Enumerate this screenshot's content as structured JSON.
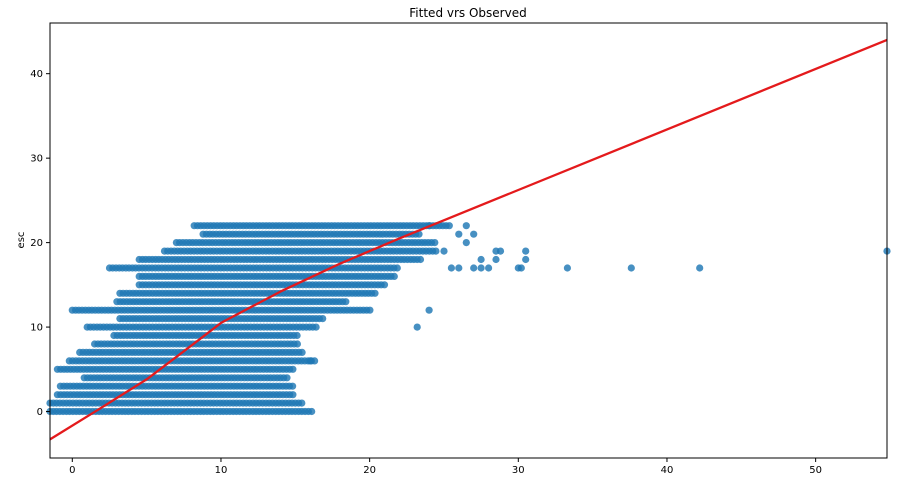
{
  "chart_data": {
    "type": "scatter",
    "title": "Fitted vrs Observed",
    "xlabel": "",
    "ylabel": "esc",
    "xlim": [
      -1.5,
      54.8
    ],
    "ylim": [
      -5.5,
      46
    ],
    "xticks": [
      0,
      10,
      20,
      30,
      40,
      50
    ],
    "yticks": [
      0,
      10,
      20,
      30,
      40
    ],
    "xtick_labels": [
      "0",
      "10",
      "20",
      "30",
      "40",
      "50"
    ],
    "ytick_labels": [
      "0",
      "10",
      "20",
      "30",
      "40"
    ],
    "grid": false,
    "scatter_color": "#1f77b4",
    "line_color": "#e41a1c",
    "series": [
      {
        "kind": "scatter-bands",
        "description_note": "",
        "bands": [
          {
            "y": 0,
            "x_min": -1.5,
            "x_max": 16.2
          },
          {
            "y": 1,
            "x_min": -1.5,
            "x_max": 15.5
          },
          {
            "y": 2,
            "x_min": -1.0,
            "x_max": 15.0
          },
          {
            "y": 3,
            "x_min": -0.8,
            "x_max": 15.0
          },
          {
            "y": 4,
            "x_min": 0.8,
            "x_max": 14.5
          },
          {
            "y": 5,
            "x_min": -1.0,
            "x_max": 15.0
          },
          {
            "y": 6,
            "x_min": -0.2,
            "x_max": 16.3
          },
          {
            "y": 7,
            "x_min": 0.5,
            "x_max": 15.5
          },
          {
            "y": 8,
            "x_min": 1.5,
            "x_max": 15.3
          },
          {
            "y": 9,
            "x_min": 2.8,
            "x_max": 15.3
          },
          {
            "y": 10,
            "x_min": 1.0,
            "x_max": 16.5
          },
          {
            "y": 11,
            "x_min": 3.2,
            "x_max": 17.0
          },
          {
            "y": 12,
            "x_min": 0.0,
            "x_max": 20.2
          },
          {
            "y": 13,
            "x_min": 3.0,
            "x_max": 18.5
          },
          {
            "y": 14,
            "x_min": 3.2,
            "x_max": 20.5
          },
          {
            "y": 15,
            "x_min": 4.5,
            "x_max": 21.0
          },
          {
            "y": 16,
            "x_min": 4.5,
            "x_max": 21.8
          },
          {
            "y": 17,
            "x_min": 2.5,
            "x_max": 22.0
          },
          {
            "y": 18,
            "x_min": 4.5,
            "x_max": 23.5
          },
          {
            "y": 19,
            "x_min": 6.2,
            "x_max": 24.5
          },
          {
            "y": 20,
            "x_min": 7.0,
            "x_max": 24.5
          },
          {
            "y": 21,
            "x_min": 8.8,
            "x_max": 23.5
          },
          {
            "y": 22,
            "x_min": 8.2,
            "x_max": 25.5
          }
        ],
        "outliers": [
          {
            "x": 23.2,
            "y": 10
          },
          {
            "x": 24.0,
            "y": 12
          },
          {
            "x": 16.0,
            "y": 6
          },
          {
            "x": 25.5,
            "y": 17
          },
          {
            "x": 26.0,
            "y": 17
          },
          {
            "x": 27.0,
            "y": 17
          },
          {
            "x": 27.5,
            "y": 17
          },
          {
            "x": 28.0,
            "y": 17
          },
          {
            "x": 30.0,
            "y": 17
          },
          {
            "x": 30.2,
            "y": 17
          },
          {
            "x": 33.3,
            "y": 17
          },
          {
            "x": 37.6,
            "y": 17
          },
          {
            "x": 42.2,
            "y": 17
          },
          {
            "x": 27.5,
            "y": 18
          },
          {
            "x": 28.5,
            "y": 18
          },
          {
            "x": 30.5,
            "y": 18
          },
          {
            "x": 28.5,
            "y": 19
          },
          {
            "x": 28.8,
            "y": 19
          },
          {
            "x": 30.5,
            "y": 19
          },
          {
            "x": 26.5,
            "y": 20
          },
          {
            "x": 27.0,
            "y": 21
          },
          {
            "x": 26.0,
            "y": 21
          },
          {
            "x": 25.0,
            "y": 19
          },
          {
            "x": 54.8,
            "y": 19
          },
          {
            "x": 26.5,
            "y": 22
          },
          {
            "x": 24.0,
            "y": 22
          }
        ]
      },
      {
        "kind": "fitted-line",
        "points": [
          {
            "x": -1.5,
            "y": -3.3
          },
          {
            "x": 2,
            "y": 0.5
          },
          {
            "x": 5,
            "y": 3.8
          },
          {
            "x": 8,
            "y": 7.8
          },
          {
            "x": 10,
            "y": 10.5
          },
          {
            "x": 14,
            "y": 14.2
          },
          {
            "x": 18,
            "y": 17.5
          },
          {
            "x": 20,
            "y": 19.0
          },
          {
            "x": 22,
            "y": 20.5
          },
          {
            "x": 54.8,
            "y": 44.0
          }
        ]
      }
    ]
  }
}
